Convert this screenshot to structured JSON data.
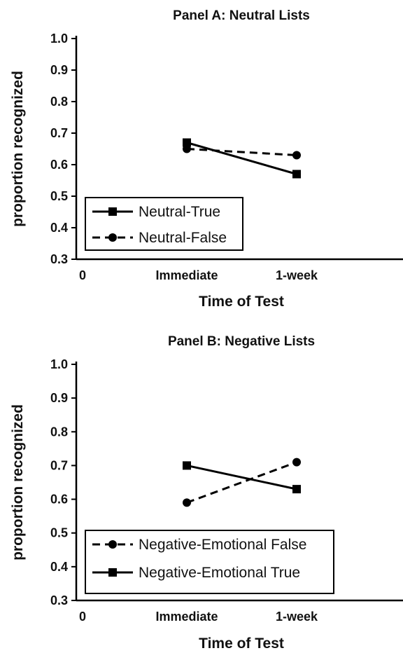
{
  "chart_data": [
    {
      "type": "line",
      "title": "Panel A:  Neutral Lists",
      "xlabel": "Time of Test",
      "ylabel": "proportion recognized",
      "x_origin_label": "0",
      "categories": [
        "Immediate",
        "1-week"
      ],
      "ylim": [
        0.3,
        1.0
      ],
      "yticks": [
        "0.3",
        "0.4",
        "0.5",
        "0.6",
        "0.7",
        "0.8",
        "0.9",
        "1.0"
      ],
      "grid": false,
      "legend_position": "bottom-left",
      "series": [
        {
          "name": "Neutral-True",
          "values": [
            0.67,
            0.57
          ],
          "marker": "square",
          "line": "solid"
        },
        {
          "name": "Neutral-False",
          "values": [
            0.65,
            0.63
          ],
          "marker": "circle",
          "line": "dashed"
        }
      ]
    },
    {
      "type": "line",
      "title": "Panel B:   Negative Lists",
      "xlabel": "Time of Test",
      "ylabel": "proportion recognized",
      "x_origin_label": "0",
      "categories": [
        "Immediate",
        "1-week"
      ],
      "ylim": [
        0.3,
        1.0
      ],
      "yticks": [
        "0.3",
        "0.4",
        "0.5",
        "0.6",
        "0.7",
        "0.8",
        "0.9",
        "1.0"
      ],
      "grid": false,
      "legend_position": "bottom-left",
      "series": [
        {
          "name": "Negative-Emotional False",
          "values": [
            0.59,
            0.71
          ],
          "marker": "circle",
          "line": "dashed"
        },
        {
          "name": "Negative-Emotional True",
          "values": [
            0.7,
            0.63
          ],
          "marker": "square",
          "line": "solid"
        }
      ]
    }
  ]
}
